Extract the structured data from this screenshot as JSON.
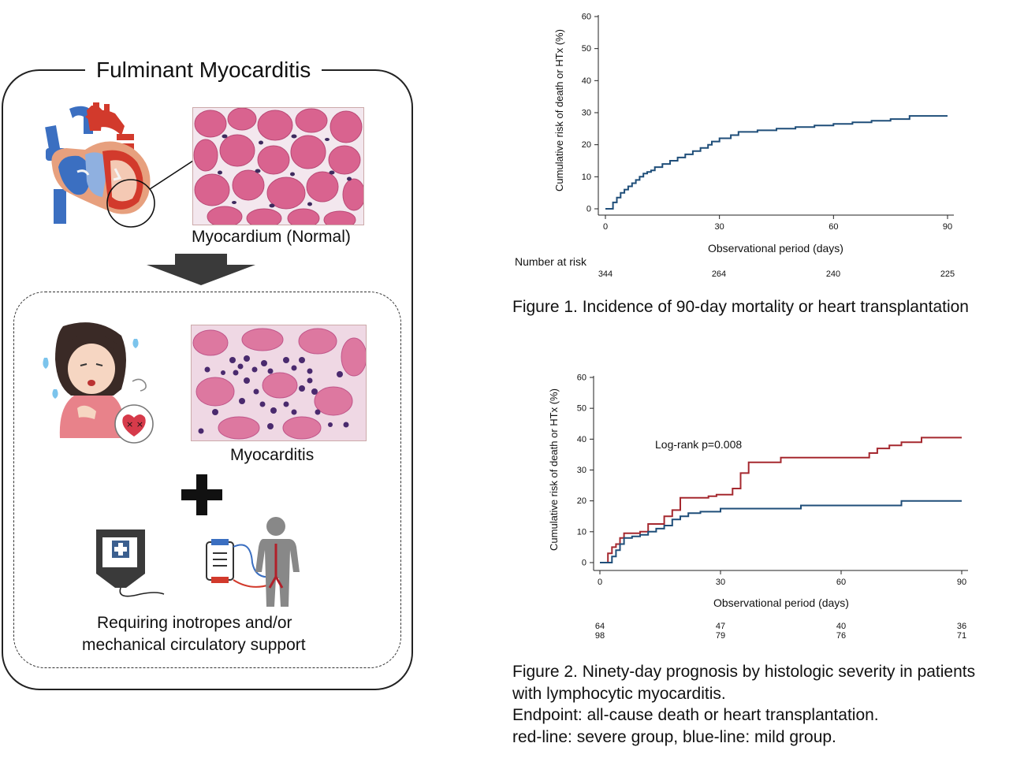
{
  "left_panel": {
    "title": "Fulminant Myocarditis",
    "normal_caption": "Myocardium (Normal)",
    "myocarditis_caption": "Myocarditis",
    "requirement_line1": "Requiring inotropes and/or",
    "requirement_line2": "mechanical circulatory support",
    "colors": {
      "heart_red": "#d23a2c",
      "heart_blue": "#3b6fc1",
      "histo_pink": "#d9638f",
      "histo_nuclei": "#4a2a6e",
      "arrow": "#3a3a3a"
    },
    "icons": [
      "heart-anatomy-icon",
      "patient-illustration-icon",
      "plus-icon",
      "inotrope-bag-icon",
      "circulatory-support-icon",
      "down-arrow-icon"
    ]
  },
  "figure1": {
    "caption": "Figure 1. Incidence of 90-day mortality or heart transplantation",
    "number_at_risk_label": "Number at risk",
    "risk_values": [
      "344",
      "264",
      "240",
      "225"
    ]
  },
  "figure2": {
    "caption_lines": [
      "Figure 2. Ninety-day prognosis by histologic severity in patients",
      "with lymphocytic myocarditis.",
      "Endpoint: all-cause death or heart transplantation.",
      "red-line: severe group, blue-line: mild group."
    ],
    "annotation": "Log-rank p=0.008",
    "risk_row1": [
      "64",
      "47",
      "40",
      "36"
    ],
    "risk_row2": [
      "98",
      "79",
      "76",
      "71"
    ]
  },
  "chart_data": [
    {
      "type": "line",
      "step": true,
      "xlabel": "Observational period (days)",
      "ylabel": "Cumulative risk of death or HTx (%)",
      "xlim": [
        0,
        90
      ],
      "ylim": [
        0,
        60
      ],
      "xticks": [
        0,
        30,
        60,
        90
      ],
      "yticks": [
        0,
        10,
        20,
        30,
        40,
        50,
        60
      ],
      "grid": false,
      "series": [
        {
          "color": "#1f4e79",
          "x": [
            0,
            2,
            3,
            4,
            5,
            6,
            7,
            8,
            9,
            10,
            11,
            12,
            13,
            15,
            17,
            19,
            21,
            23,
            25,
            27,
            28,
            30,
            33,
            35,
            40,
            45,
            50,
            55,
            60,
            65,
            70,
            75,
            80,
            85,
            90
          ],
          "y": [
            0,
            2,
            3.5,
            5,
            6,
            7,
            8,
            9,
            10,
            11,
            11.5,
            12,
            13,
            14,
            15,
            16,
            17,
            18,
            19,
            20,
            21,
            22,
            23,
            24,
            24.5,
            25,
            25.5,
            26,
            26.5,
            27,
            27.5,
            28,
            29,
            29,
            29
          ]
        }
      ]
    },
    {
      "type": "line",
      "step": true,
      "xlabel": "Observational period (days)",
      "ylabel": "Cumulative risk of death or HTx (%)",
      "xlim": [
        0,
        90
      ],
      "ylim": [
        0,
        60
      ],
      "xticks": [
        0,
        30,
        60,
        90
      ],
      "yticks": [
        0,
        10,
        20,
        30,
        40,
        50,
        60
      ],
      "grid": false,
      "annotations": [
        "Log-rank p=0.008"
      ],
      "series": [
        {
          "color": "#a5282f",
          "x": [
            0,
            2,
            3,
            4,
            5,
            6,
            10,
            12,
            16,
            18,
            20,
            27,
            29,
            33,
            35,
            37,
            40,
            45,
            50,
            60,
            67,
            69,
            72,
            75,
            80,
            90
          ],
          "y": [
            0,
            3,
            5,
            6,
            8,
            9.5,
            10,
            12.5,
            15,
            17,
            21,
            21.5,
            22,
            24,
            29,
            32.5,
            32.5,
            34,
            34,
            34,
            35.5,
            37,
            38,
            39,
            40.5,
            40.5
          ]
        },
        {
          "color": "#1f4e79",
          "x": [
            0,
            3,
            4,
            5,
            6,
            8,
            10,
            12,
            14,
            16,
            18,
            20,
            22,
            25,
            30,
            35,
            40,
            45,
            50,
            60,
            70,
            75,
            80,
            90
          ],
          "y": [
            0,
            2,
            4,
            6,
            8,
            8.5,
            9,
            10,
            11,
            12,
            14,
            15,
            16,
            16.5,
            17.5,
            17.5,
            17.5,
            17.5,
            18.5,
            18.5,
            18.5,
            20,
            20,
            20
          ]
        }
      ]
    }
  ]
}
